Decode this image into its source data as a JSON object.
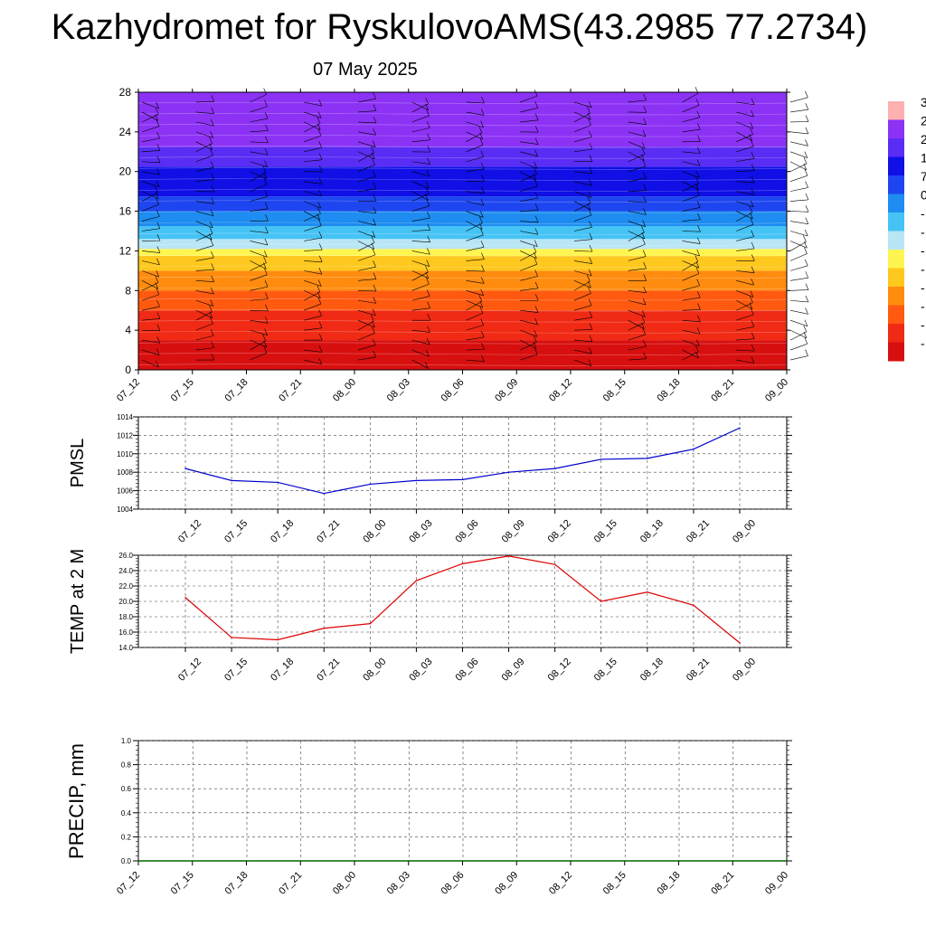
{
  "header": {
    "title": "Kazhydromet for RyskulovoAMS(43.2985 77.2734)",
    "date": "07 May 2025"
  },
  "colors": {
    "pmsl_line": "#0000cc",
    "temp_line": "#dd0000",
    "precip_line": "#006600",
    "grid": "#444444"
  },
  "chart_data": [
    {
      "id": "wind_temp_profile",
      "type": "heatmap",
      "title": "",
      "xlabel": "",
      "ylabel": "",
      "x_ticks": [
        "07_12",
        "07_15",
        "07_18",
        "07_21",
        "08_00",
        "08_03",
        "08_06",
        "08_09",
        "08_12",
        "08_15",
        "08_18",
        "08_21",
        "09_00"
      ],
      "y_ticks": [
        "0",
        "4",
        "8",
        "12",
        "16",
        "20",
        "24",
        "28"
      ],
      "ylim": [
        0,
        28
      ],
      "colorbar_ticks": [
        "3",
        "2",
        "2",
        "1",
        "7",
        "0",
        "-",
        "-",
        "-",
        "-",
        "-",
        "-",
        "-",
        "-"
      ],
      "color_bands": [
        {
          "from": 0,
          "to": 3,
          "color": "#d80f0f"
        },
        {
          "from": 3,
          "to": 6,
          "color": "#f02a14"
        },
        {
          "from": 6,
          "to": 8,
          "color": "#ff5a0f"
        },
        {
          "from": 8,
          "to": 10,
          "color": "#ff8c0f"
        },
        {
          "from": 10,
          "to": 11.5,
          "color": "#ffc81e"
        },
        {
          "from": 11.5,
          "to": 12.2,
          "color": "#fff550"
        },
        {
          "from": 12.2,
          "to": 13.2,
          "color": "#b9e6f5"
        },
        {
          "from": 13.2,
          "to": 14.5,
          "color": "#46c3f5"
        },
        {
          "from": 14.5,
          "to": 16,
          "color": "#1e8cf0"
        },
        {
          "from": 16,
          "to": 17.5,
          "color": "#1e46f0"
        },
        {
          "from": 17.5,
          "to": 20.5,
          "color": "#0f0fe6"
        },
        {
          "from": 20.5,
          "to": 22.5,
          "color": "#5a2df5"
        },
        {
          "from": 22.5,
          "to": 28,
          "color": "#8c32f5"
        }
      ]
    },
    {
      "id": "pmsl",
      "type": "line",
      "title": "",
      "ylabel": "PMSL",
      "xlabel": "",
      "x": [
        "07_12",
        "07_15",
        "07_18",
        "07_21",
        "08_00",
        "08_03",
        "08_06",
        "08_09",
        "08_12",
        "08_15",
        "08_18",
        "08_21",
        "09_00"
      ],
      "y_ticks": [
        "1004",
        "1006",
        "1008",
        "1010",
        "1012",
        "1014"
      ],
      "ylim": [
        1004,
        1014
      ],
      "series": [
        {
          "values": [
            1008.4,
            1007.1,
            1006.9,
            1005.7,
            1006.7,
            1007.1,
            1007.2,
            1008.0,
            1008.4,
            1009.4,
            1009.5,
            1010.5,
            1012.8
          ]
        }
      ],
      "grid": true
    },
    {
      "id": "temp2m",
      "type": "line",
      "title": "",
      "ylabel": "TEMP at 2 M",
      "xlabel": "",
      "x": [
        "07_12",
        "07_15",
        "07_18",
        "07_21",
        "08_00",
        "08_03",
        "08_06",
        "08_09",
        "08_12",
        "08_15",
        "08_18",
        "08_21",
        "09_00"
      ],
      "y_ticks": [
        "14.0",
        "16.0",
        "18.0",
        "20.0",
        "22.0",
        "24.0",
        "26.0"
      ],
      "ylim": [
        14,
        26
      ],
      "series": [
        {
          "values": [
            20.5,
            15.3,
            15.0,
            16.5,
            17.1,
            22.7,
            24.9,
            25.9,
            24.8,
            20.0,
            21.2,
            19.5,
            14.6
          ]
        }
      ],
      "grid": true
    },
    {
      "id": "precip",
      "type": "line",
      "title": "",
      "ylabel": "PRECIP, mm",
      "xlabel": "",
      "x": [
        "07_12",
        "07_15",
        "07_18",
        "07_21",
        "08_00",
        "08_03",
        "08_06",
        "08_09",
        "08_12",
        "08_15",
        "08_18",
        "08_21",
        "09_00"
      ],
      "y_ticks": [
        "0.0",
        "0.2",
        "0.4",
        "0.6",
        "0.8",
        "1.0"
      ],
      "ylim": [
        0,
        1
      ],
      "series": [
        {
          "values": [
            0,
            0,
            0,
            0,
            0,
            0,
            0,
            0,
            0,
            0,
            0,
            0,
            0
          ]
        }
      ],
      "grid": true
    }
  ]
}
